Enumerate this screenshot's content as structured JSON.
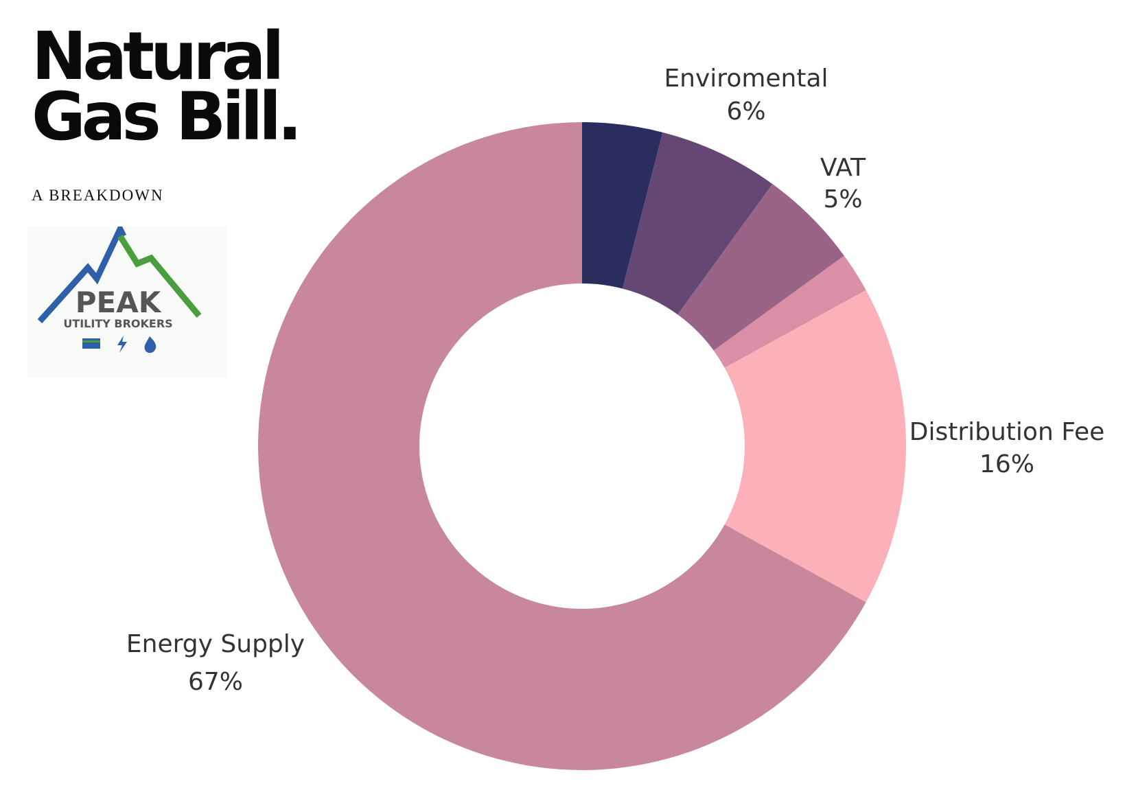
{
  "header": {
    "title_line1": "Natural",
    "title_line2": "Gas Bill.",
    "subtitle": "A BREAKDOWN"
  },
  "logo": {
    "name": "PEAK",
    "tagline": "UTILITY BROKERS",
    "icons": [
      "card-icon",
      "lightning-icon",
      "flame-icon"
    ],
    "colors": {
      "blue": "#2e5fa8",
      "green": "#4a9e3f",
      "gray": "#555555"
    }
  },
  "chart_data": {
    "type": "pie",
    "style": "donut",
    "title": "Natural Gas Bill.",
    "subtitle": "A BREAKDOWN",
    "slices": [
      {
        "label": "",
        "percent_label": "",
        "value": 4,
        "color": "#2a2d5e"
      },
      {
        "label": "Enviromental",
        "percent_label": "6%",
        "value": 6,
        "color": "#644873"
      },
      {
        "label": "VAT",
        "percent_label": "5%",
        "value": 5,
        "color": "#9a6487"
      },
      {
        "label": "",
        "percent_label": "",
        "value": 2,
        "color": "#d98fa6"
      },
      {
        "label": "Distribution Fee",
        "percent_label": "16%",
        "value": 16,
        "color": "#fbb1b7"
      },
      {
        "label": "Energy Supply",
        "percent_label": "67%",
        "value": 67,
        "color": "#c8879c"
      }
    ]
  }
}
